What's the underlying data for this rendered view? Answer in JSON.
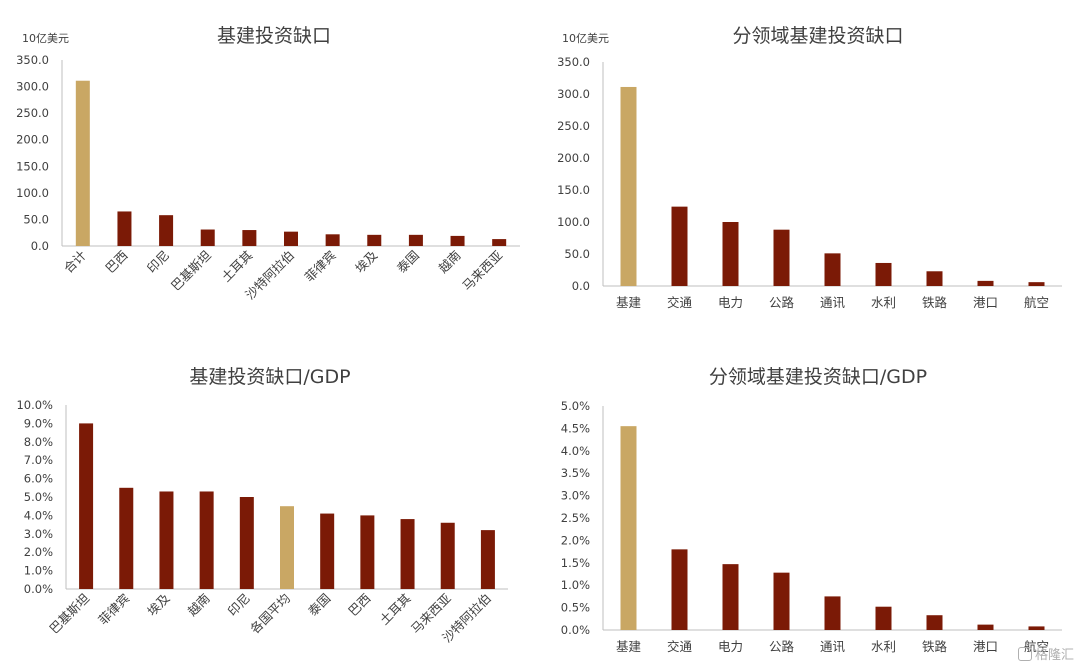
{
  "colors": {
    "highlight": "#c9a764",
    "bar": "#7b1a06"
  },
  "chart_data": [
    {
      "type": "bar",
      "title": "基建投资缺口",
      "unit": "10亿美元",
      "categories": [
        "合计",
        "巴西",
        "印尼",
        "巴基斯坦",
        "土耳其",
        "沙特阿拉伯",
        "菲律宾",
        "埃及",
        "泰国",
        "越南",
        "马来西亚"
      ],
      "values": [
        311,
        65,
        58,
        31,
        30,
        27,
        22,
        21,
        21,
        19,
        13
      ],
      "highlight": [
        0
      ],
      "yticks": [
        "0.0",
        "50.0",
        "100.0",
        "150.0",
        "200.0",
        "250.0",
        "300.0",
        "350.0"
      ],
      "ylim": [
        0,
        350
      ]
    },
    {
      "type": "bar",
      "title": "分领域基建投资缺口",
      "unit": "10亿美元",
      "categories": [
        "基建",
        "交通",
        "电力",
        "公路",
        "通讯",
        "水利",
        "铁路",
        "港口",
        "航空"
      ],
      "values": [
        311,
        124,
        100,
        88,
        51,
        36,
        23,
        8,
        6
      ],
      "highlight": [
        0
      ],
      "yticks": [
        "0.0",
        "50.0",
        "100.0",
        "150.0",
        "200.0",
        "250.0",
        "300.0",
        "350.0"
      ],
      "ylim": [
        0,
        350
      ]
    },
    {
      "type": "bar",
      "title": "基建投资缺口/GDP",
      "unit": "",
      "categories": [
        "巴基斯坦",
        "菲律宾",
        "埃及",
        "越南",
        "印尼",
        "各国平均",
        "泰国",
        "巴西",
        "土耳其",
        "马来西亚",
        "沙特阿拉伯"
      ],
      "values": [
        9.0,
        5.5,
        5.3,
        5.3,
        5.0,
        4.5,
        4.1,
        4.0,
        3.8,
        3.6,
        3.2
      ],
      "highlight": [
        5
      ],
      "yticks": [
        "0.0%",
        "1.0%",
        "2.0%",
        "3.0%",
        "4.0%",
        "5.0%",
        "6.0%",
        "7.0%",
        "8.0%",
        "9.0%",
        "10.0%"
      ],
      "ylim": [
        0,
        10
      ]
    },
    {
      "type": "bar",
      "title": "分领域基建投资缺口/GDP",
      "unit": "",
      "categories": [
        "基建",
        "交通",
        "电力",
        "公路",
        "通讯",
        "水利",
        "铁路",
        "港口",
        "航空"
      ],
      "values": [
        4.55,
        1.8,
        1.47,
        1.28,
        0.75,
        0.52,
        0.33,
        0.12,
        0.08
      ],
      "highlight": [
        0
      ],
      "yticks": [
        "0.0%",
        "0.5%",
        "1.0%",
        "1.5%",
        "2.0%",
        "2.5%",
        "3.0%",
        "3.5%",
        "4.0%",
        "4.5%",
        "5.0%"
      ],
      "ylim": [
        0,
        5
      ]
    }
  ],
  "watermark": "格隆汇"
}
